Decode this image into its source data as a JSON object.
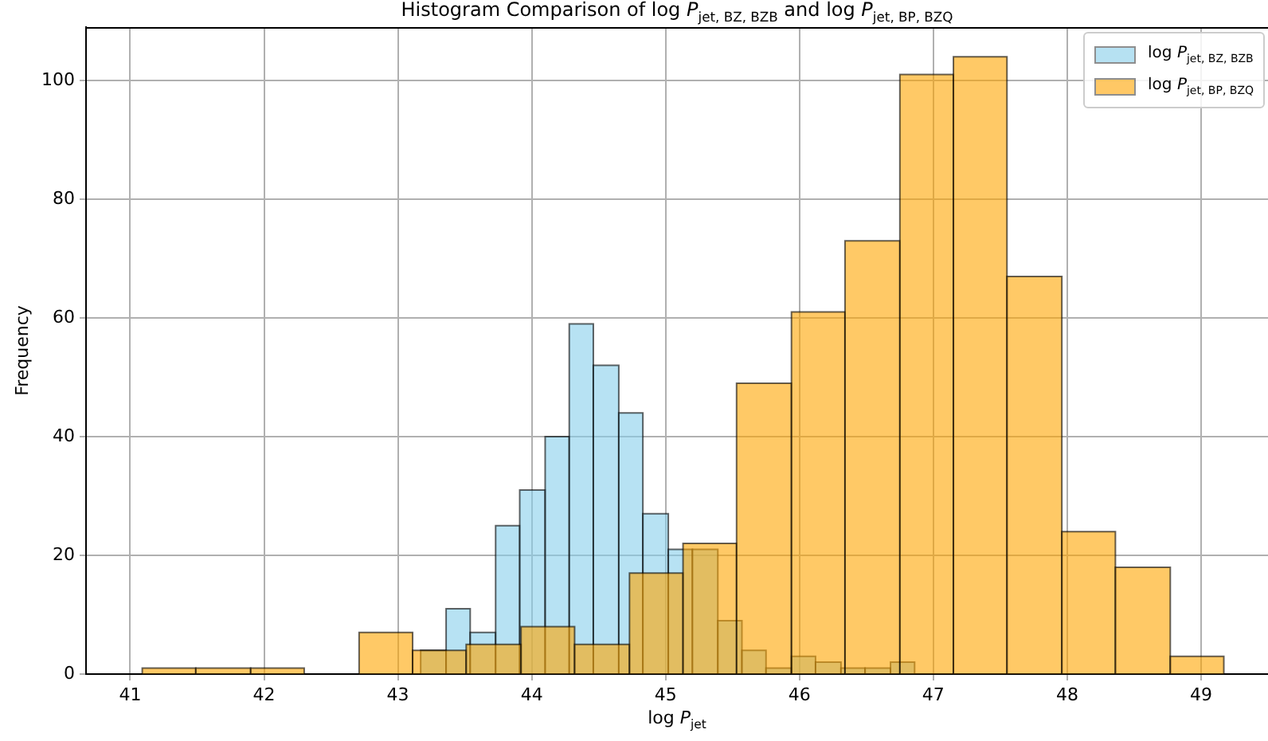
{
  "chart_data": {
    "type": "histogram",
    "title": "Histogram Comparison of log P$_{jet, BZ, BZB}$ and log P$_{jet, BP, BZQ}$",
    "xlabel": "log P$_{jet}$",
    "ylabel": "Frequency",
    "xlim": [
      40.67,
      49.5
    ],
    "xticks": [
      41,
      42,
      43,
      44,
      45,
      46,
      47,
      48,
      49
    ],
    "ylim": [
      0,
      109
    ],
    "yticks": [
      0,
      20,
      40,
      60,
      80,
      100
    ],
    "grid": true,
    "legend": "top right",
    "bins": [
      41.09,
      41.49,
      41.9,
      42.3,
      42.71,
      43.11,
      43.51,
      43.92,
      44.32,
      44.73,
      45.13,
      45.53,
      45.94,
      46.34,
      46.75,
      47.15,
      47.55,
      47.96,
      48.36,
      48.77,
      49.17
    ],
    "series": [
      {
        "name": "log P$_{jet, BZ, BZB}$",
        "color": "#87ceeb",
        "bins": [
          43.17,
          43.36,
          43.54,
          43.73,
          43.91,
          44.1,
          44.28,
          44.46,
          44.65,
          44.83,
          45.02,
          45.2,
          45.39,
          45.57,
          45.75,
          45.94,
          46.12,
          46.31,
          46.49,
          46.68,
          46.86
        ],
        "values": [
          4,
          11,
          7,
          25,
          31,
          40,
          59,
          52,
          44,
          27,
          21,
          21,
          9,
          4,
          1,
          3,
          2,
          1,
          1,
          2
        ]
      },
      {
        "name": "log P$_{jet, BP, BZQ}$",
        "color": "#ffa500",
        "values": [
          1,
          1,
          1,
          0,
          7,
          4,
          5,
          8,
          5,
          17,
          22,
          49,
          61,
          73,
          101,
          104,
          67,
          24,
          18,
          3
        ]
      }
    ]
  }
}
